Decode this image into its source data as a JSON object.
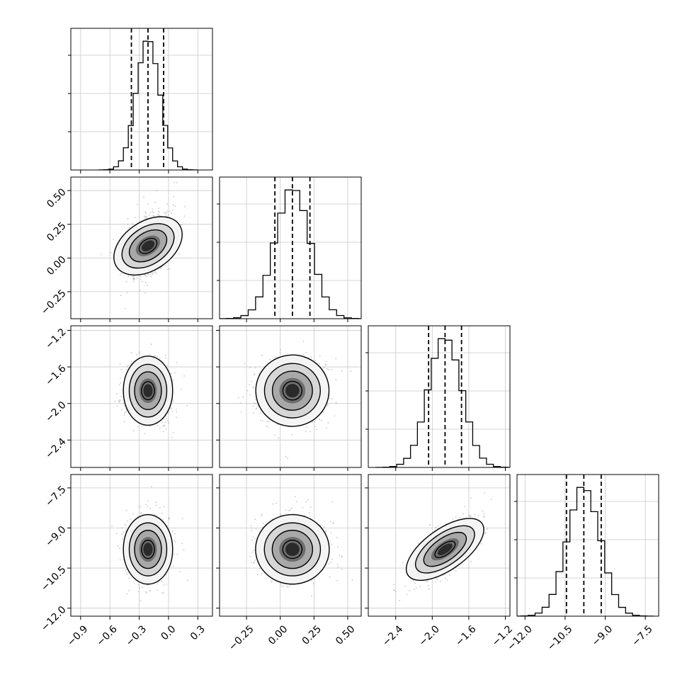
{
  "chart_data": {
    "type": "corner",
    "grid": true,
    "parameters": [
      {
        "range": [
          -1.0,
          0.45
        ],
        "ticks": [
          -0.9,
          -0.6,
          -0.3,
          0.0,
          0.3
        ],
        "tick_labels": [
          "−0.9",
          "−0.6",
          "−0.3",
          "0.0",
          "0.3"
        ],
        "quantiles": [
          -0.38,
          -0.21,
          -0.05
        ],
        "mean": -0.21,
        "sd": 0.12
      },
      {
        "range": [
          -0.45,
          0.6
        ],
        "ticks": [
          -0.25,
          0.0,
          0.25,
          0.5
        ],
        "tick_labels": [
          "−0.25",
          "0.00",
          "0.25",
          "0.50"
        ],
        "quantiles": [
          -0.04,
          0.09,
          0.22
        ],
        "mean": 0.09,
        "sd": 0.13
      },
      {
        "range": [
          -2.7,
          -1.15
        ],
        "ticks": [
          -2.4,
          -2.0,
          -1.6,
          -1.2
        ],
        "tick_labels": [
          "−2.4",
          "−2.0",
          "−1.6",
          "−1.2"
        ],
        "quantiles": [
          -2.04,
          -1.86,
          -1.68
        ],
        "mean": -1.86,
        "sd": 0.18
      },
      {
        "range": [
          -12.3,
          -7.0
        ],
        "ticks": [
          -12.0,
          -10.5,
          -9.0,
          -7.5
        ],
        "tick_labels": [
          "−12.0",
          "−10.5",
          "−9.0",
          "−7.5"
        ],
        "quantiles": [
          -10.45,
          -9.8,
          -9.15
        ],
        "mean": -9.8,
        "sd": 0.62
      }
    ],
    "correlations": [
      {
        "pair": [
          0,
          1
        ],
        "rho": 0.45
      },
      {
        "pair": [
          0,
          2
        ],
        "rho": 0.0
      },
      {
        "pair": [
          1,
          2
        ],
        "rho": 0.05
      },
      {
        "pair": [
          0,
          3
        ],
        "rho": 0.0
      },
      {
        "pair": [
          1,
          3
        ],
        "rho": 0.0
      },
      {
        "pair": [
          2,
          3
        ],
        "rho": 0.7
      }
    ],
    "histogram_bins": 20
  }
}
